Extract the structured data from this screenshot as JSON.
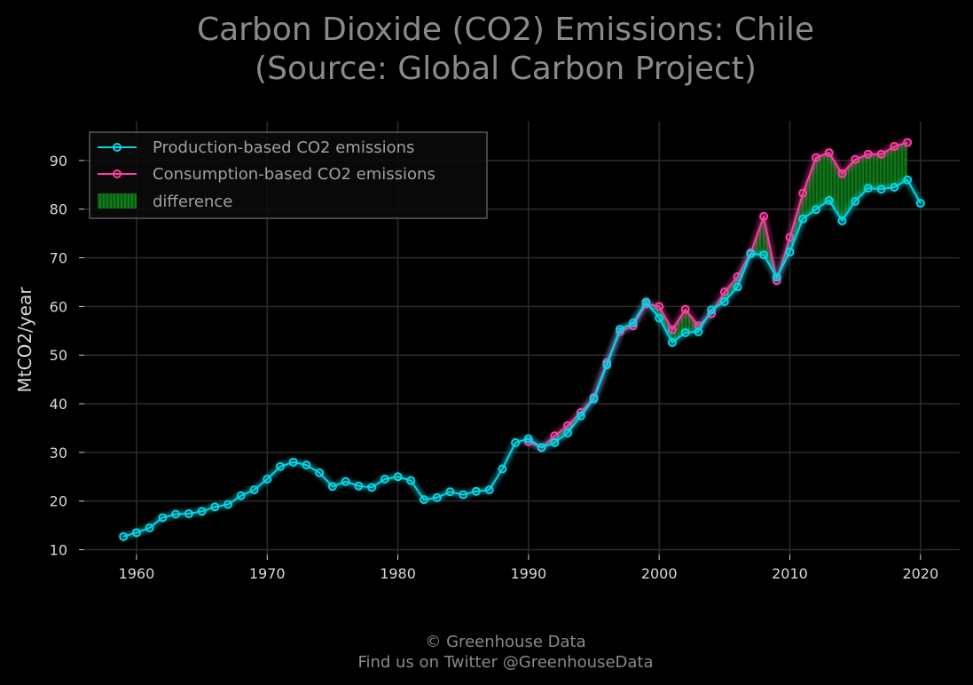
{
  "chart_data": {
    "type": "line",
    "title": "Carbon Dioxide (CO2) Emissions: Chile",
    "subtitle": "(Source: Global Carbon Project)",
    "ylabel": "MtCO2/year",
    "xlabel": "",
    "xlim": [
      1956,
      2023
    ],
    "ylim": [
      9,
      98
    ],
    "xticks": [
      1960,
      1970,
      1980,
      1990,
      2000,
      2010,
      2020
    ],
    "yticks": [
      10,
      20,
      30,
      40,
      50,
      60,
      70,
      80,
      90
    ],
    "grid": true,
    "legend_position": "top-left",
    "series": [
      {
        "name": "Production-based CO2 emissions",
        "color": "#00d9e8",
        "x": [
          1959,
          1960,
          1961,
          1962,
          1963,
          1964,
          1965,
          1966,
          1967,
          1968,
          1969,
          1970,
          1971,
          1972,
          1973,
          1974,
          1975,
          1976,
          1977,
          1978,
          1979,
          1980,
          1981,
          1982,
          1983,
          1984,
          1985,
          1986,
          1987,
          1988,
          1989,
          1990,
          1991,
          1992,
          1993,
          1994,
          1995,
          1996,
          1997,
          1998,
          1999,
          2000,
          2001,
          2002,
          2003,
          2004,
          2005,
          2006,
          2007,
          2008,
          2009,
          2010,
          2011,
          2012,
          2013,
          2014,
          2015,
          2016,
          2017,
          2018,
          2019,
          2020
        ],
        "y": [
          12.7,
          13.5,
          14.5,
          16.6,
          17.3,
          17.4,
          17.9,
          18.8,
          19.3,
          21.1,
          22.3,
          24.5,
          27.1,
          28.0,
          27.4,
          25.8,
          23.0,
          24.0,
          23.1,
          22.8,
          24.5,
          25.0,
          24.2,
          20.3,
          20.7,
          21.9,
          21.3,
          22.0,
          22.3,
          26.6,
          32.0,
          32.8,
          31.0,
          32.0,
          34.0,
          37.5,
          41.0,
          48.0,
          55.3,
          56.6,
          60.9,
          57.6,
          52.6,
          54.6,
          54.8,
          59.3,
          61.0,
          64.0,
          70.8,
          70.6,
          66.0,
          71.2,
          78.0,
          79.9,
          81.8,
          77.6,
          81.6,
          84.3,
          84.1,
          84.5,
          86.0,
          81.2
        ]
      },
      {
        "name": "Consumption-based CO2 emissions",
        "color": "#ff3da5",
        "x": [
          1990,
          1991,
          1992,
          1993,
          1994,
          1995,
          1996,
          1997,
          1998,
          1999,
          2000,
          2001,
          2002,
          2003,
          2004,
          2005,
          2006,
          2007,
          2008,
          2009,
          2010,
          2011,
          2012,
          2013,
          2014,
          2015,
          2016,
          2017,
          2018,
          2019
        ],
        "y": [
          32.2,
          31.0,
          33.4,
          35.5,
          38.2,
          41.3,
          48.5,
          54.8,
          56.0,
          60.5,
          60.0,
          55.2,
          59.4,
          56.0,
          58.5,
          63.0,
          66.1,
          71.0,
          78.5,
          65.3,
          74.2,
          83.3,
          90.6,
          91.6,
          87.3,
          90.2,
          91.3,
          91.3,
          92.9,
          93.7
        ]
      }
    ],
    "difference": {
      "name": "difference",
      "color": "#0b6b12"
    }
  },
  "footer": {
    "line1": "© Greenhouse Data",
    "line2": "Find us on Twitter @GreenhouseData"
  }
}
